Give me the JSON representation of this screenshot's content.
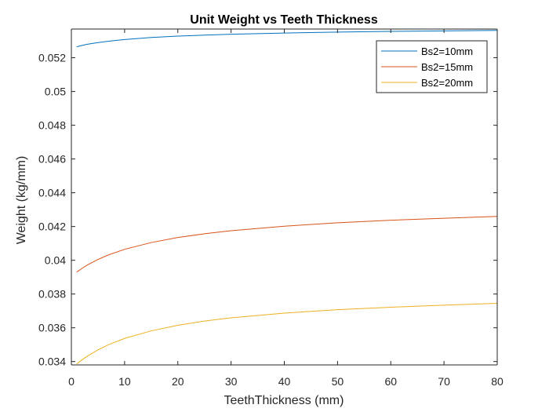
{
  "chart_data": {
    "type": "line",
    "title": "Unit Weight vs Teeth Thickness",
    "xlabel": "TeethThickness (mm)",
    "ylabel": "Weight (kg/mm)",
    "xlim": [
      0,
      80
    ],
    "ylim": [
      0.0338,
      0.0537
    ],
    "xticks": [
      0,
      10,
      20,
      30,
      40,
      50,
      60,
      70,
      80
    ],
    "yticks": [
      0.034,
      0.036,
      0.038,
      0.04,
      0.042,
      0.044,
      0.046,
      0.048,
      0.05,
      0.052
    ],
    "ytick_labels": [
      "0.034",
      "0.036",
      "0.038",
      "0.04",
      "0.042",
      "0.044",
      "0.046",
      "0.048",
      "0.05",
      "0.052"
    ],
    "grid": false,
    "legend_position": "top-right",
    "x": [
      1,
      2,
      3,
      5,
      7,
      10,
      15,
      20,
      25,
      30,
      40,
      50,
      60,
      70,
      80
    ],
    "series": [
      {
        "name": "Bs2=10mm",
        "color": "#0072BD",
        "values": [
          0.05265,
          0.05273,
          0.0528,
          0.0529,
          0.05298,
          0.05308,
          0.0532,
          0.05328,
          0.05334,
          0.05339,
          0.05346,
          0.05352,
          0.05356,
          0.05359,
          0.05362
        ]
      },
      {
        "name": "Bs2=15mm",
        "color": "#D95319",
        "values": [
          0.0393,
          0.03952,
          0.03972,
          0.04005,
          0.04032,
          0.04065,
          0.04105,
          0.04135,
          0.04157,
          0.04175,
          0.04202,
          0.04222,
          0.04237,
          0.04249,
          0.0426
        ]
      },
      {
        "name": "Bs2=20mm",
        "color": "#EDB120",
        "values": [
          0.03385,
          0.0341,
          0.03432,
          0.03469,
          0.035,
          0.03537,
          0.03582,
          0.03615,
          0.0364,
          0.03659,
          0.03687,
          0.03707,
          0.03722,
          0.03734,
          0.03745
        ]
      }
    ]
  }
}
